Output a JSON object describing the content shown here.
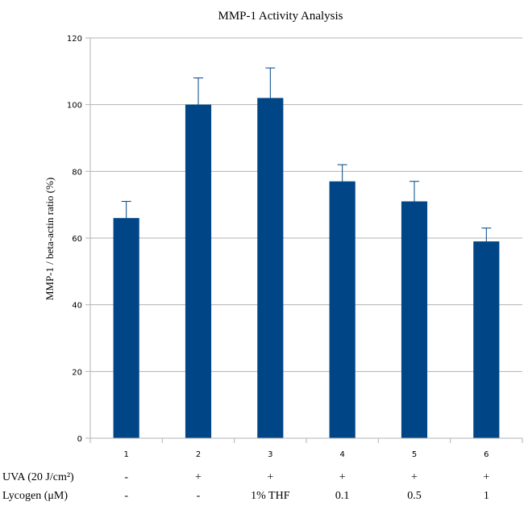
{
  "chart_data": {
    "type": "bar",
    "title": "MMP-1 Activity Analysis",
    "xlabel": "",
    "ylabel": "MMP-1 / beta-actin ratio (%)",
    "ylim": [
      0,
      120
    ],
    "yticks": [
      0,
      20,
      40,
      60,
      80,
      100,
      120
    ],
    "categories": [
      "1",
      "2",
      "3",
      "4",
      "5",
      "6"
    ],
    "values": [
      66,
      100,
      102,
      77,
      71,
      59
    ],
    "errors": [
      5,
      8,
      9,
      5,
      6,
      4
    ],
    "grid": true,
    "legend": "none",
    "bar_color": "#004586",
    "conditions": [
      {
        "label": "UVA (20 J/cm²)",
        "values": [
          "-",
          "+",
          "+",
          "+",
          "+",
          "+"
        ]
      },
      {
        "label": "Lycogen (μM)",
        "values": [
          "-",
          "-",
          "1% THF",
          "0.1",
          "0.5",
          "1"
        ]
      }
    ]
  }
}
